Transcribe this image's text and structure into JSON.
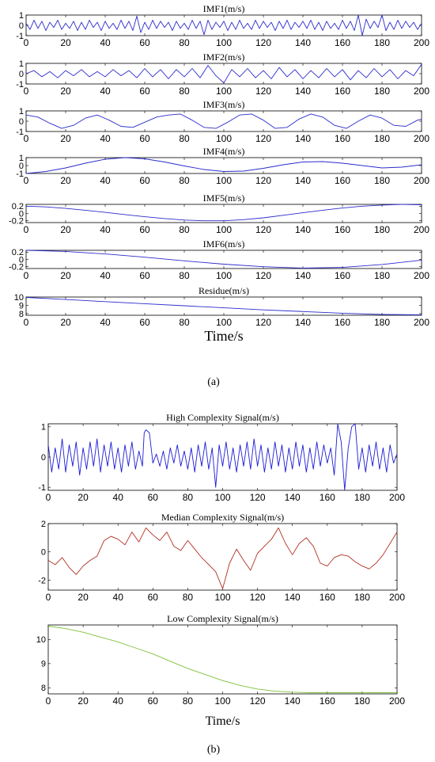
{
  "panel_a_label": "(a)",
  "panel_b_label": "(b)",
  "chart_data": [
    {
      "type": "line",
      "title": "IMF1(m/s)",
      "xlim": [
        0,
        200
      ],
      "ylim": [
        -1,
        1
      ],
      "yticks": [
        -1,
        0,
        1
      ],
      "xticks": [
        0,
        20,
        40,
        60,
        80,
        100,
        120,
        140,
        160,
        180,
        200
      ],
      "color": "#2b2bcc",
      "series": [
        {
          "x": [
            0,
            2,
            4,
            6,
            8,
            10,
            12,
            14,
            16,
            18,
            20,
            22,
            24,
            26,
            28,
            30,
            32,
            34,
            36,
            38,
            40,
            42,
            44,
            46,
            48,
            50,
            52,
            54,
            56,
            58,
            60,
            62,
            64,
            66,
            68,
            70,
            72,
            74,
            76,
            78,
            80,
            82,
            84,
            86,
            88,
            90,
            92,
            94,
            96,
            98,
            100,
            102,
            104,
            106,
            108,
            110,
            112,
            114,
            116,
            118,
            120,
            122,
            124,
            126,
            128,
            130,
            132,
            134,
            136,
            138,
            140,
            142,
            144,
            146,
            148,
            150,
            152,
            154,
            156,
            158,
            160,
            162,
            164,
            166,
            168,
            170,
            172,
            174,
            176,
            178,
            180,
            182,
            184,
            186,
            188,
            190,
            192,
            194,
            196,
            198,
            200
          ],
          "y": [
            0.2,
            -0.4,
            0.5,
            -0.3,
            0.4,
            -0.5,
            0.3,
            -0.2,
            0.5,
            -0.4,
            0.2,
            -0.3,
            0.4,
            -0.5,
            0.3,
            -0.4,
            0.5,
            -0.2,
            0.3,
            -0.5,
            0.4,
            -0.3,
            0.2,
            -0.4,
            0.5,
            -0.3,
            0.4,
            -0.5,
            0.9,
            -0.7,
            0.3,
            -0.4,
            0.5,
            -0.3,
            0.4,
            -0.2,
            0.3,
            -0.5,
            0.4,
            -0.3,
            0.2,
            -0.4,
            0.5,
            -0.3,
            0.4,
            -0.9,
            0.5,
            -0.4,
            0.3,
            -0.2,
            0.4,
            -0.5,
            0.3,
            -0.4,
            0.5,
            -0.3,
            0.2,
            -0.4,
            0.5,
            -0.3,
            0.4,
            -0.2,
            0.3,
            -0.5,
            0.4,
            -0.3,
            0.5,
            -0.4,
            0.3,
            -0.2,
            0.4,
            -0.3,
            0.5,
            -0.4,
            0.3,
            -0.5,
            0.4,
            -0.3,
            0.2,
            -0.4,
            0.5,
            -0.3,
            0.4,
            -0.5,
            1.0,
            -1.0,
            0.6,
            -0.3,
            0.4,
            -0.2,
            1.0,
            -0.5,
            0.3,
            -0.4,
            0.5,
            -0.3,
            0.4,
            -0.2,
            0.3,
            -0.4,
            0.2
          ]
        }
      ]
    },
    {
      "type": "line",
      "title": "IMF2(m/s)",
      "xlim": [
        0,
        200
      ],
      "ylim": [
        -1,
        1
      ],
      "yticks": [
        -1,
        0,
        1
      ],
      "xticks": [
        0,
        20,
        40,
        60,
        80,
        100,
        120,
        140,
        160,
        180,
        200
      ],
      "color": "#2b2bcc",
      "series": [
        {
          "x": [
            0,
            4,
            8,
            12,
            16,
            20,
            24,
            28,
            32,
            36,
            40,
            44,
            48,
            52,
            56,
            60,
            64,
            68,
            72,
            76,
            80,
            84,
            88,
            92,
            96,
            100,
            104,
            108,
            112,
            116,
            120,
            124,
            128,
            132,
            136,
            140,
            144,
            148,
            152,
            156,
            160,
            164,
            168,
            172,
            176,
            180,
            184,
            188,
            192,
            196,
            200
          ],
          "y": [
            0.0,
            0.3,
            -0.3,
            0.2,
            -0.4,
            0.3,
            -0.2,
            0.4,
            -0.3,
            0.2,
            -0.3,
            0.4,
            -0.2,
            0.3,
            -0.4,
            0.5,
            -0.3,
            0.4,
            -0.5,
            0.4,
            -0.3,
            0.5,
            -0.4,
            0.8,
            -0.2,
            -0.9,
            0.4,
            -0.3,
            0.5,
            -0.4,
            0.3,
            -0.5,
            0.6,
            -0.3,
            0.4,
            -0.5,
            0.3,
            -0.4,
            0.5,
            -0.3,
            0.4,
            -0.6,
            0.3,
            -0.4,
            0.5,
            -0.3,
            0.4,
            -0.5,
            0.3,
            -0.2,
            0.9
          ]
        }
      ]
    },
    {
      "type": "line",
      "title": "IMF3(m/s)",
      "xlim": [
        0,
        200
      ],
      "ylim": [
        -1,
        1
      ],
      "yticks": [
        -1,
        0,
        1
      ],
      "xticks": [
        0,
        20,
        40,
        60,
        80,
        100,
        120,
        140,
        160,
        180,
        200
      ],
      "color": "#2b2bcc",
      "series": [
        {
          "x": [
            0,
            6,
            12,
            18,
            24,
            30,
            36,
            42,
            48,
            54,
            60,
            66,
            72,
            78,
            84,
            90,
            96,
            102,
            108,
            114,
            120,
            126,
            132,
            138,
            144,
            150,
            156,
            162,
            168,
            174,
            180,
            186,
            192,
            198,
            200
          ],
          "y": [
            0.6,
            0.4,
            -0.2,
            -0.7,
            -0.4,
            0.3,
            0.6,
            0.1,
            -0.5,
            -0.6,
            -0.1,
            0.4,
            0.6,
            0.7,
            0.1,
            -0.6,
            -0.7,
            -0.1,
            0.6,
            0.7,
            0.1,
            -0.7,
            -0.6,
            0.2,
            0.7,
            0.4,
            -0.4,
            -0.7,
            0.0,
            0.6,
            0.3,
            -0.4,
            -0.5,
            0.1,
            0.2
          ]
        }
      ]
    },
    {
      "type": "line",
      "title": "IMF4(m/s)",
      "xlim": [
        0,
        200
      ],
      "ylim": [
        -1,
        1
      ],
      "yticks": [
        -1,
        0,
        1
      ],
      "xticks": [
        0,
        20,
        40,
        60,
        80,
        100,
        120,
        140,
        160,
        180,
        200
      ],
      "color": "#2b2bcc",
      "series": [
        {
          "x": [
            0,
            10,
            20,
            30,
            40,
            50,
            60,
            70,
            80,
            90,
            100,
            110,
            120,
            130,
            140,
            150,
            160,
            170,
            180,
            190,
            200
          ],
          "y": [
            -1.0,
            -0.75,
            -0.3,
            0.3,
            0.8,
            1.0,
            0.85,
            0.45,
            -0.05,
            -0.5,
            -0.75,
            -0.7,
            -0.35,
            0.1,
            0.45,
            0.5,
            0.3,
            0.0,
            -0.3,
            -0.2,
            0.1
          ]
        }
      ]
    },
    {
      "type": "line",
      "title": "IMF5(m/s)",
      "xlim": [
        0,
        200
      ],
      "ylim": [
        -0.25,
        0.25
      ],
      "yticks": [
        -0.2,
        0,
        0.2
      ],
      "xticks": [
        0,
        20,
        40,
        60,
        80,
        100,
        120,
        140,
        160,
        180,
        200
      ],
      "color": "#2b2bcc",
      "series": [
        {
          "x": [
            0,
            10,
            20,
            30,
            40,
            50,
            60,
            70,
            80,
            90,
            100,
            110,
            120,
            130,
            140,
            150,
            160,
            170,
            180,
            190,
            200
          ],
          "y": [
            0.2,
            0.18,
            0.14,
            0.09,
            0.03,
            -0.03,
            -0.09,
            -0.14,
            -0.18,
            -0.2,
            -0.2,
            -0.17,
            -0.12,
            -0.05,
            0.02,
            0.09,
            0.15,
            0.2,
            0.23,
            0.25,
            0.24
          ]
        }
      ]
    },
    {
      "type": "line",
      "title": "IMF6(m/s)",
      "xlim": [
        0,
        200
      ],
      "ylim": [
        -0.25,
        0.25
      ],
      "yticks": [
        -0.2,
        0,
        0.2
      ],
      "xticks": [
        0,
        20,
        40,
        60,
        80,
        100,
        120,
        140,
        160,
        180,
        200
      ],
      "color": "#2b2bcc",
      "series": [
        {
          "x": [
            0,
            20,
            40,
            60,
            80,
            100,
            120,
            140,
            160,
            180,
            200
          ],
          "y": [
            0.25,
            0.22,
            0.15,
            0.06,
            -0.04,
            -0.13,
            -0.2,
            -0.24,
            -0.22,
            -0.14,
            -0.02
          ]
        }
      ]
    },
    {
      "type": "line",
      "title": "Residue(m/s)",
      "xlim": [
        0,
        200
      ],
      "ylim": [
        7.8,
        10
      ],
      "yticks": [
        8,
        9,
        10
      ],
      "xticks": [
        0,
        20,
        40,
        60,
        80,
        100,
        120,
        140,
        160,
        180,
        200
      ],
      "xlabel": "Time/s",
      "color": "#2b2bcc",
      "series": [
        {
          "x": [
            0,
            20,
            40,
            60,
            80,
            100,
            120,
            140,
            160,
            180,
            200
          ],
          "y": [
            9.95,
            9.7,
            9.45,
            9.2,
            8.95,
            8.7,
            8.45,
            8.25,
            8.05,
            7.9,
            7.85
          ]
        }
      ]
    },
    {
      "type": "line",
      "title": "High Complexity Signal(m/s)",
      "xlim": [
        0,
        200
      ],
      "ylim": [
        -1.1,
        1.1
      ],
      "yticks": [
        -1,
        0,
        1
      ],
      "xticks": [
        0,
        20,
        40,
        60,
        80,
        100,
        120,
        140,
        160,
        180,
        200
      ],
      "color": "#1c1cd6",
      "series": [
        {
          "x": [
            0,
            2,
            4,
            6,
            8,
            10,
            12,
            14,
            16,
            18,
            20,
            22,
            24,
            26,
            28,
            30,
            32,
            34,
            36,
            38,
            40,
            42,
            44,
            46,
            48,
            50,
            52,
            54,
            55,
            56,
            58,
            60,
            62,
            64,
            66,
            68,
            70,
            72,
            74,
            76,
            78,
            80,
            82,
            84,
            86,
            88,
            90,
            92,
            94,
            96,
            98,
            100,
            102,
            104,
            106,
            108,
            110,
            112,
            114,
            116,
            118,
            120,
            122,
            124,
            126,
            128,
            130,
            132,
            134,
            136,
            138,
            140,
            142,
            144,
            146,
            148,
            150,
            152,
            154,
            156,
            158,
            160,
            162,
            164,
            166,
            168,
            170,
            172,
            174,
            176,
            178,
            180,
            182,
            184,
            186,
            188,
            190,
            192,
            194,
            196,
            198,
            200
          ],
          "y": [
            0.4,
            -0.5,
            0.3,
            -0.4,
            0.6,
            -0.5,
            0.4,
            -0.3,
            0.5,
            -0.6,
            0.3,
            -0.4,
            0.5,
            -0.3,
            0.6,
            -0.5,
            0.4,
            -0.3,
            0.5,
            -0.4,
            0.3,
            -0.5,
            0.4,
            -0.3,
            0.5,
            -0.4,
            0.2,
            -0.3,
            0.8,
            0.9,
            0.8,
            -0.2,
            0.1,
            -0.3,
            0.2,
            -0.4,
            0.3,
            -0.2,
            0.4,
            -0.3,
            0.2,
            -0.4,
            0.3,
            -0.5,
            0.4,
            -0.3,
            0.5,
            -0.4,
            0.3,
            -1.0,
            0.4,
            -0.3,
            0.5,
            -0.4,
            0.3,
            -0.5,
            0.4,
            -0.3,
            0.5,
            -0.4,
            0.6,
            -0.3,
            0.4,
            -0.5,
            0.3,
            -0.4,
            0.5,
            -0.3,
            0.4,
            -0.5,
            0.3,
            -0.4,
            0.5,
            -0.3,
            0.4,
            -0.5,
            0.3,
            -0.4,
            0.5,
            -0.3,
            0.4,
            -0.2,
            0.3,
            -0.6,
            1.1,
            0.5,
            -1.1,
            0.3,
            1.0,
            1.1,
            -0.4,
            0.3,
            -0.5,
            0.4,
            -0.3,
            0.5,
            -0.4,
            0.3,
            -0.5,
            0.4,
            -0.2,
            0.1
          ]
        }
      ]
    },
    {
      "type": "line",
      "title": "Median Complexity Signal(m/s)",
      "xlim": [
        0,
        200
      ],
      "ylim": [
        -2.7,
        2
      ],
      "yticks": [
        -2,
        0,
        2
      ],
      "xticks": [
        0,
        20,
        40,
        60,
        80,
        100,
        120,
        140,
        160,
        180,
        200
      ],
      "color": "#b03020",
      "series": [
        {
          "x": [
            0,
            4,
            8,
            12,
            16,
            20,
            24,
            28,
            32,
            36,
            40,
            44,
            48,
            52,
            56,
            60,
            64,
            68,
            72,
            76,
            80,
            84,
            88,
            92,
            96,
            100,
            104,
            108,
            112,
            116,
            120,
            124,
            128,
            132,
            136,
            140,
            144,
            148,
            152,
            156,
            160,
            164,
            168,
            172,
            176,
            180,
            184,
            188,
            192,
            196,
            200
          ],
          "y": [
            -0.6,
            -0.9,
            -0.4,
            -1.1,
            -1.6,
            -1.0,
            -0.6,
            -0.3,
            0.8,
            1.1,
            0.9,
            0.5,
            1.4,
            0.7,
            1.7,
            1.2,
            0.8,
            1.4,
            0.4,
            0.1,
            0.8,
            0.2,
            -0.4,
            -0.9,
            -1.4,
            -2.6,
            -0.8,
            0.2,
            -0.6,
            -1.3,
            -0.1,
            0.4,
            0.9,
            1.7,
            0.6,
            -0.2,
            0.6,
            1.0,
            0.4,
            -0.8,
            -1.0,
            -0.4,
            -0.2,
            -0.3,
            -0.7,
            -1.0,
            -1.2,
            -0.8,
            -0.2,
            0.6,
            1.4
          ]
        }
      ]
    },
    {
      "type": "line",
      "title": "Low Complexity Signal(m/s)",
      "xlim": [
        0,
        200
      ],
      "ylim": [
        7.75,
        10.6
      ],
      "yticks": [
        8,
        9,
        10
      ],
      "xticks": [
        0,
        20,
        40,
        60,
        80,
        100,
        120,
        140,
        160,
        180,
        200
      ],
      "xlabel": "Time/s",
      "color": "#7ec23a",
      "series": [
        {
          "x": [
            0,
            10,
            20,
            30,
            40,
            50,
            60,
            70,
            80,
            90,
            100,
            110,
            120,
            130,
            140,
            150,
            160,
            170,
            180,
            190,
            200
          ],
          "y": [
            10.55,
            10.45,
            10.3,
            10.1,
            9.9,
            9.65,
            9.4,
            9.1,
            8.8,
            8.55,
            8.3,
            8.1,
            7.95,
            7.86,
            7.82,
            7.8,
            7.8,
            7.8,
            7.8,
            7.8,
            7.8
          ]
        }
      ]
    }
  ]
}
